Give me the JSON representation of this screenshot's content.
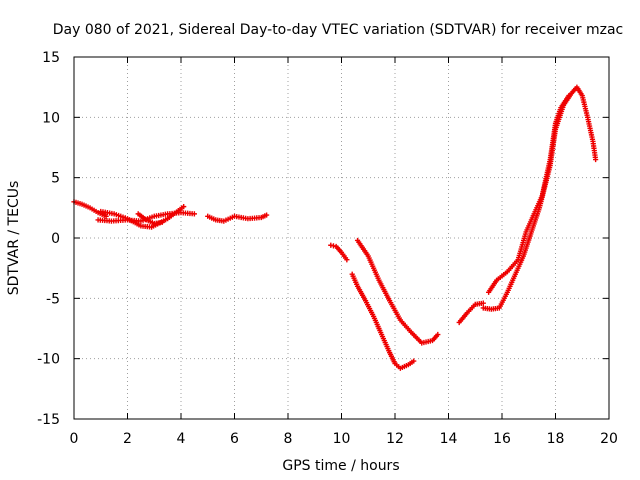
{
  "chart_data": {
    "type": "scatter",
    "title": "Day 080 of 2021, Sidereal Day-to-day VTEC variation (SDTVAR) for receiver mzac",
    "xlabel": "GPS time / hours",
    "ylabel": "SDTVAR / TECUs",
    "xlim": [
      0,
      20
    ],
    "ylim": [
      -15,
      15
    ],
    "xticks": [
      0,
      2,
      4,
      6,
      8,
      10,
      12,
      14,
      16,
      18,
      20
    ],
    "yticks": [
      -15,
      -10,
      -5,
      0,
      5,
      10,
      15
    ],
    "grid": true,
    "marker": "+",
    "color": "#ee0000",
    "segments": [
      {
        "name": "track-1a",
        "x": [
          0.0,
          0.3,
          0.6,
          0.9,
          1.2
        ],
        "y": [
          3.0,
          2.8,
          2.5,
          2.1,
          1.8
        ]
      },
      {
        "name": "track-1b",
        "x": [
          0.9,
          1.4,
          2.0,
          2.5,
          3.0,
          3.5,
          4.0,
          4.5
        ],
        "y": [
          1.5,
          1.4,
          1.5,
          1.4,
          1.8,
          2.0,
          2.1,
          2.0
        ]
      },
      {
        "name": "track-1c",
        "x": [
          1.0,
          1.5,
          2.0,
          2.5,
          2.9,
          3.5,
          4.1
        ],
        "y": [
          2.2,
          2.0,
          1.6,
          1.0,
          0.9,
          1.6,
          2.6
        ]
      },
      {
        "name": "track-1d",
        "x": [
          2.4,
          2.7,
          3.0,
          3.3
        ],
        "y": [
          2.0,
          1.5,
          1.2,
          1.3
        ]
      },
      {
        "name": "track-1e",
        "x": [
          5.0,
          5.3,
          5.6,
          6.0,
          6.5,
          7.0,
          7.2
        ],
        "y": [
          1.8,
          1.5,
          1.4,
          1.8,
          1.6,
          1.7,
          1.9
        ]
      },
      {
        "name": "track-2a",
        "x": [
          9.6,
          9.8,
          10.0,
          10.2
        ],
        "y": [
          -0.6,
          -0.7,
          -1.2,
          -1.8
        ]
      },
      {
        "name": "track-2b",
        "x": [
          10.4,
          10.6,
          10.9,
          11.2,
          11.5,
          11.8,
          12.0,
          12.2,
          12.5,
          12.7
        ],
        "y": [
          -3.0,
          -4.0,
          -5.2,
          -6.5,
          -8.0,
          -9.5,
          -10.4,
          -10.8,
          -10.5,
          -10.2
        ]
      },
      {
        "name": "track-2c",
        "x": [
          10.6,
          11.0,
          11.4,
          11.8,
          12.2,
          12.6,
          13.0,
          13.4,
          13.6
        ],
        "y": [
          -0.2,
          -1.5,
          -3.5,
          -5.2,
          -6.8,
          -7.8,
          -8.7,
          -8.5,
          -8.0
        ]
      },
      {
        "name": "track-3a",
        "x": [
          14.4,
          14.7,
          15.0,
          15.3
        ],
        "y": [
          -7.0,
          -6.2,
          -5.5,
          -5.4
        ]
      },
      {
        "name": "track-3b",
        "x": [
          15.3,
          15.6,
          15.9,
          16.2,
          16.5,
          16.8,
          17.1,
          17.4,
          17.8,
          18.0,
          18.3,
          18.6,
          18.8,
          19.0,
          19.2,
          19.4,
          19.5
        ],
        "y": [
          -5.8,
          -5.9,
          -5.8,
          -4.5,
          -3.0,
          -1.5,
          0.5,
          2.5,
          6.0,
          9.0,
          11.0,
          12.0,
          12.5,
          11.8,
          10.0,
          8.0,
          6.5
        ]
      },
      {
        "name": "track-3c",
        "x": [
          15.5,
          15.8,
          16.2,
          16.6,
          16.9,
          17.2,
          17.5,
          17.8,
          18.0,
          18.2,
          18.5
        ],
        "y": [
          -4.5,
          -3.5,
          -2.8,
          -1.8,
          0.5,
          2.0,
          3.5,
          6.5,
          9.5,
          10.8,
          11.8
        ]
      }
    ]
  }
}
